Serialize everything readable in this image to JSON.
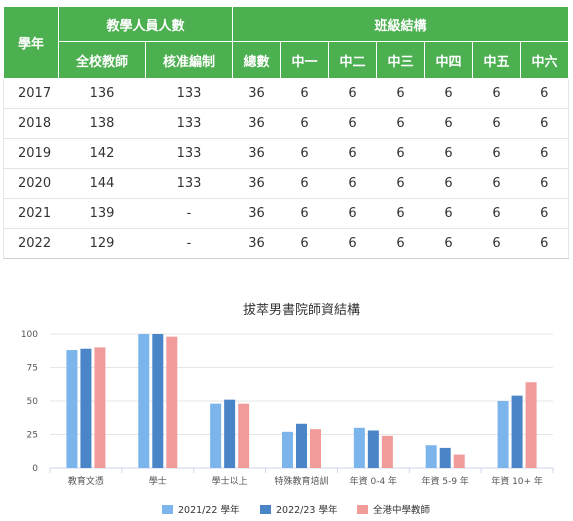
{
  "table": {
    "header": {
      "year": "學年",
      "staff_group": "教學人員人數",
      "class_group": "班級結構",
      "staff_cols": [
        "全校教師",
        "核准編制"
      ],
      "class_cols": [
        "總數",
        "中一",
        "中二",
        "中三",
        "中四",
        "中五",
        "中六"
      ]
    },
    "rows": [
      [
        "2017",
        "136",
        "133",
        "36",
        "6",
        "6",
        "6",
        "6",
        "6",
        "6"
      ],
      [
        "2018",
        "138",
        "133",
        "36",
        "6",
        "6",
        "6",
        "6",
        "6",
        "6"
      ],
      [
        "2019",
        "142",
        "133",
        "36",
        "6",
        "6",
        "6",
        "6",
        "6",
        "6"
      ],
      [
        "2020",
        "144",
        "133",
        "36",
        "6",
        "6",
        "6",
        "6",
        "6",
        "6"
      ],
      [
        "2021",
        "139",
        "-",
        "36",
        "6",
        "6",
        "6",
        "6",
        "6",
        "6"
      ],
      [
        "2022",
        "129",
        "-",
        "36",
        "6",
        "6",
        "6",
        "6",
        "6",
        "6"
      ]
    ]
  },
  "chart_data": {
    "type": "bar",
    "title": "拔萃男書院師資結構",
    "categories": [
      "教育文憑",
      "學士",
      "學士以上",
      "特殊教育培訓",
      "年資 0-4 年",
      "年資 5-9 年",
      "年資 10+ 年"
    ],
    "series": [
      {
        "name": "2021/22 學年",
        "color": "#7cb5ec",
        "values": [
          88,
          100,
          48,
          27,
          30,
          17,
          50
        ]
      },
      {
        "name": "2022/23 學年",
        "color": "#4a86c7",
        "values": [
          89,
          100,
          51,
          33,
          28,
          15,
          54
        ]
      },
      {
        "name": "全港中學教師",
        "color": "#f29b9b",
        "values": [
          90,
          98,
          48,
          29,
          24,
          10,
          64
        ]
      }
    ],
    "ylim": [
      0,
      100
    ],
    "yticks": [
      0,
      25,
      50,
      75,
      100
    ],
    "grid": true,
    "legend": "bottom"
  }
}
